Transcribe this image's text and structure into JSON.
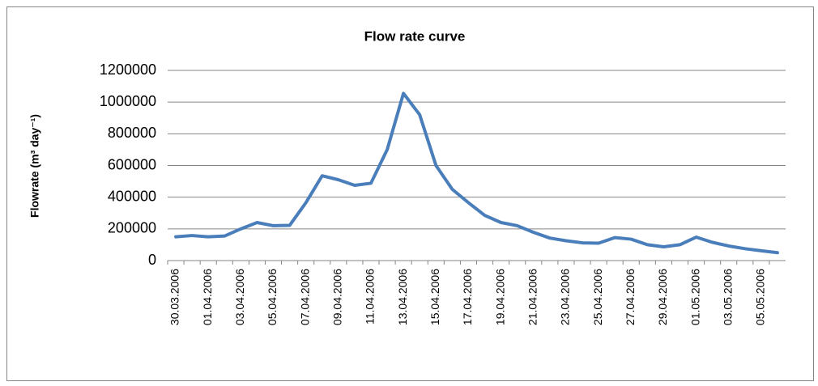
{
  "chart_data": {
    "type": "line",
    "title": "Flow rate curve",
    "y_label": "Flowrate (m³ day⁻¹)",
    "categories": [
      "30.03.2006",
      null,
      "01.04.2006",
      null,
      "03.04.2006",
      null,
      "05.04.2006",
      null,
      "07.04.2006",
      null,
      "09.04.2006",
      null,
      "11.04.2006",
      null,
      "13.04.2006",
      null,
      "15.04.2006",
      null,
      "17.04.2006",
      null,
      "19.04.2006",
      null,
      "21.04.2006",
      null,
      "23.04.2006",
      null,
      "25.04.2006",
      null,
      "27.04.2006",
      null,
      "29.04.2006",
      null,
      "01.05.2006",
      null,
      "03.05.2006",
      null,
      "05.05.2006",
      null
    ],
    "values": [
      150000,
      158000,
      150000,
      155000,
      200000,
      240000,
      220000,
      222000,
      365000,
      535000,
      510000,
      475000,
      488000,
      700000,
      1055000,
      920000,
      600000,
      450000,
      365000,
      285000,
      240000,
      220000,
      178000,
      142000,
      125000,
      112000,
      110000,
      145000,
      135000,
      100000,
      87000,
      100000,
      148000,
      115000,
      92000,
      75000,
      62000,
      50000
    ],
    "color": "#4a7ebb",
    "ylim": [
      0,
      1200000
    ],
    "yticks": [
      0,
      200000,
      400000,
      600000,
      800000,
      1000000,
      1200000
    ],
    "grid": true
  }
}
